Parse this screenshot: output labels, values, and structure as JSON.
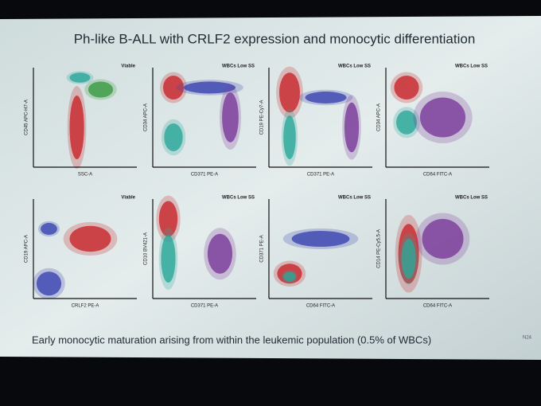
{
  "slide": {
    "title": "Ph-like B-ALL with CRLF2 expression and monocytic differentiation",
    "panels": [
      {
        "gate": "Viable",
        "x_label": "SSC-A",
        "y_label": "CD45 APC-H7-A"
      },
      {
        "gate": "WBCs Low SS",
        "x_label": "CD371 PE-A",
        "y_label": "CD34 APC-A"
      },
      {
        "gate": "WBCs Low SS",
        "x_label": "CD371 PE-A",
        "y_label": "CD19 PE-Cy7-A"
      },
      {
        "gate": "WBCs Low SS",
        "x_label": "CD64 FITC-A",
        "y_label": "CD34 APC-A"
      },
      {
        "gate": "Viable",
        "x_label": "CRLF2 PE-A",
        "y_label": "CD19 APC-A"
      },
      {
        "gate": "WBCs Low SS",
        "x_label": "CD371 PE-A",
        "y_label": "CD10 BV421-A"
      },
      {
        "gate": "WBCs Low SS",
        "x_label": "CD64 FITC-A",
        "y_label": "CD371 PE-A"
      },
      {
        "gate": "WBCs Low SS",
        "x_label": "CD64 FITC-A",
        "y_label": "CD14 PE-Cy5.5-A"
      }
    ],
    "caption": "Early monocytic maturation arising from within the leukemic population (0.5% of WBCs)",
    "footer": "N24"
  }
}
